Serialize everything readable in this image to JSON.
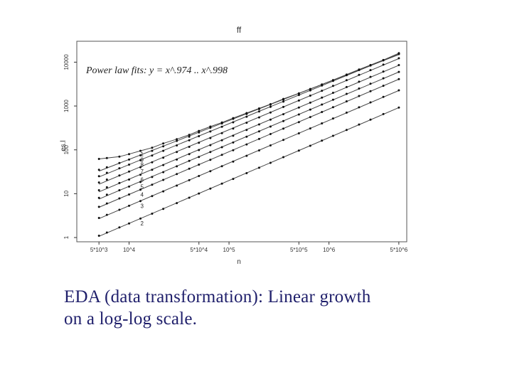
{
  "chart_data": {
    "type": "scatter",
    "title": "ff",
    "xlabel": "n",
    "ylabel": "es.l",
    "x_scale": "log",
    "y_scale": "log",
    "xlim": [
      3000,
      6000000
    ],
    "ylim": [
      0.8,
      30000
    ],
    "x_ticks": [
      {
        "value": 5000,
        "label": "5*10^3"
      },
      {
        "value": 10000,
        "label": "10^4"
      },
      {
        "value": 50000,
        "label": "5*10^4"
      },
      {
        "value": 100000,
        "label": "10^5"
      },
      {
        "value": 500000,
        "label": "5*10^5"
      },
      {
        "value": 1000000,
        "label": "10^6"
      },
      {
        "value": 5000000,
        "label": "5*10^6"
      }
    ],
    "y_ticks": [
      {
        "value": 1,
        "label": "1"
      },
      {
        "value": 10,
        "label": "10"
      },
      {
        "value": 100,
        "label": "100"
      },
      {
        "value": 1000,
        "label": "1000"
      },
      {
        "value": 10000,
        "label": "10000"
      }
    ],
    "annotation": "Power law fits: y = x^.974 .. x^.998",
    "x": [
      5000,
      6000,
      8000,
      10000,
      13000,
      17000,
      22000,
      30000,
      40000,
      50000,
      65000,
      85000,
      110000,
      150000,
      200000,
      260000,
      350000,
      500000,
      650000,
      850000,
      1100000,
      1500000,
      2000000,
      2600000,
      3500000,
      5000000
    ],
    "series": [
      {
        "name": "1",
        "values": [
          62,
          65,
          70,
          80,
          95,
          112,
          140,
          175,
          220,
          270,
          340,
          420,
          530,
          690,
          880,
          1100,
          1450,
          1950,
          2450,
          3100,
          3900,
          5200,
          6800,
          8600,
          11200,
          16000
        ]
      },
      {
        "name": "9",
        "values": [
          35,
          40,
          50,
          60,
          75,
          95,
          120,
          160,
          200,
          250,
          320,
          400,
          510,
          660,
          850,
          1070,
          1400,
          1900,
          2400,
          3050,
          3850,
          5150,
          6700,
          8500,
          11100,
          15500
        ]
      },
      {
        "name": "8",
        "values": [
          25,
          30,
          38,
          46,
          58,
          74,
          95,
          126,
          165,
          205,
          262,
          336,
          425,
          570,
          750,
          960,
          1260,
          1780,
          2270,
          2930,
          3750,
          5050,
          6600,
          8400,
          11000,
          15300
        ]
      },
      {
        "name": "7",
        "values": [
          18,
          21,
          26,
          32,
          40,
          52,
          66,
          89,
          117,
          145,
          186,
          240,
          307,
          415,
          550,
          710,
          950,
          1330,
          1720,
          2230,
          2870,
          3880,
          5120,
          6590,
          8780,
          12300
        ]
      },
      {
        "name": "6",
        "values": [
          12,
          14,
          17.5,
          21,
          27,
          35,
          45,
          60,
          80,
          99,
          128,
          165,
          210,
          285,
          380,
          490,
          650,
          920,
          1190,
          1550,
          2000,
          2710,
          3580,
          4620,
          6120,
          8600
        ]
      },
      {
        "name": "5",
        "values": [
          8,
          9.5,
          12,
          14.5,
          18.5,
          24,
          31,
          42,
          56,
          69,
          89,
          115,
          147,
          199,
          264,
          340,
          455,
          640,
          830,
          1080,
          1390,
          1890,
          2500,
          3220,
          4280,
          6000
        ]
      },
      {
        "name": "4",
        "values": [
          5,
          6,
          7.8,
          9.6,
          12.3,
          16,
          20.6,
          28,
          37,
          46,
          59,
          77,
          98,
          133,
          177,
          229,
          305,
          430,
          560,
          730,
          940,
          1280,
          1690,
          2180,
          2900,
          4100
        ]
      },
      {
        "name": "3",
        "values": [
          2.8,
          3.3,
          4.3,
          5.3,
          6.8,
          8.8,
          11.3,
          15.3,
          20.3,
          25.3,
          32.6,
          42.4,
          54,
          73,
          97,
          126,
          168,
          238,
          308,
          402,
          519,
          705,
          935,
          1210,
          1610,
          2280
        ]
      },
      {
        "name": "2",
        "values": [
          1.1,
          1.3,
          1.7,
          2.1,
          2.7,
          3.5,
          4.5,
          6.1,
          8.1,
          10.1,
          13,
          17,
          21.7,
          29.4,
          39,
          50.5,
          68,
          96,
          124,
          162,
          209,
          285,
          378,
          490,
          655,
          925
        ]
      }
    ],
    "fit_lines": "power law",
    "grid": false,
    "legend": "none"
  },
  "caption": {
    "line1": "EDA (data transformation): Linear growth",
    "line2": "on a log-log scale."
  },
  "colors": {
    "caption": "#1f1f6b",
    "points": "#111111",
    "lines": "#444444",
    "frame": "#555555",
    "ticks": "#333333"
  }
}
